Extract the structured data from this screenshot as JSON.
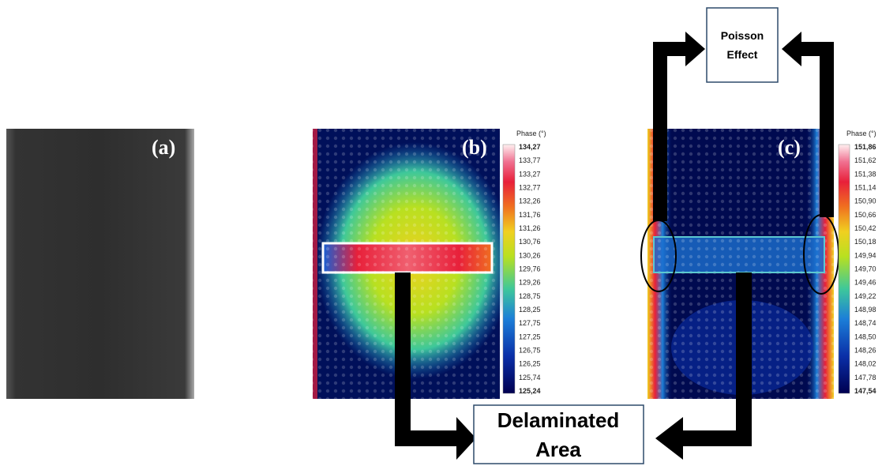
{
  "panels": [
    {
      "label": "(a)"
    },
    {
      "label": "(b)",
      "colorbar": {
        "title": "Phase (°)",
        "ticks": [
          "134,27",
          "133,77",
          "133,27",
          "132,77",
          "132,26",
          "131,76",
          "131,26",
          "130,76",
          "130,26",
          "129,76",
          "129,26",
          "128,75",
          "128,25",
          "127,75",
          "127,25",
          "126,75",
          "126,25",
          "125,74",
          "125,24"
        ]
      }
    },
    {
      "label": "(c)",
      "colorbar": {
        "title": "Phase (°)",
        "ticks": [
          "151,86",
          "151,62",
          "151,38",
          "151,14",
          "150,90",
          "150,66",
          "150,42",
          "150,18",
          "149,94",
          "149,70",
          "149,46",
          "149,22",
          "148,98",
          "148,74",
          "148,50",
          "148,26",
          "148,02",
          "147,78",
          "147,54"
        ]
      }
    }
  ],
  "annotations": {
    "poisson": [
      "Poisson",
      "Effect"
    ],
    "delaminated": [
      "Delaminated",
      "Area"
    ]
  }
}
